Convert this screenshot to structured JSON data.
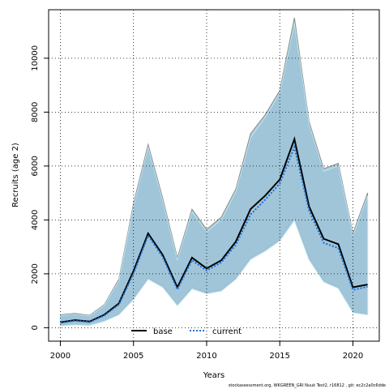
{
  "chart_data": {
    "type": "area",
    "xlabel": "Years",
    "ylabel": "Recruits (age 2)",
    "xlim": [
      1999.2,
      2021.8
    ],
    "ylim": [
      -500,
      11800
    ],
    "x_ticks": [
      "2000",
      "2005",
      "2010",
      "2015",
      "2020"
    ],
    "y_ticks": [
      "0",
      "2000",
      "4000",
      "6000",
      "8000",
      "10000"
    ],
    "grid": true,
    "legend_placement": "bottom",
    "colors": {
      "band_fill": "#9dc3d8",
      "band_outline_base": "#888888",
      "band_outline_current": "#bce3ef",
      "base_line": "#000000",
      "current_line": "#1a6fd6"
    },
    "x": [
      2000,
      2001,
      2002,
      2003,
      2004,
      2005,
      2006,
      2007,
      2008,
      2009,
      2010,
      2011,
      2012,
      2013,
      2014,
      2015,
      2016,
      2017,
      2018,
      2019,
      2020,
      2021
    ],
    "series": [
      {
        "name": "base",
        "style": "solid",
        "values": [
          200,
          280,
          230,
          480,
          900,
          2100,
          3500,
          2700,
          1500,
          2600,
          2200,
          2500,
          3200,
          4400,
          4900,
          5500,
          7000,
          4500,
          3300,
          3100,
          1500,
          1600
        ],
        "lower": [
          80,
          120,
          100,
          250,
          500,
          1100,
          1850,
          1550,
          860,
          1500,
          1300,
          1400,
          1850,
          2600,
          2900,
          3300,
          4100,
          2600,
          1750,
          1500,
          580,
          500
        ],
        "upper": [
          480,
          530,
          460,
          850,
          1800,
          4600,
          6800,
          4800,
          2600,
          4400,
          3650,
          4100,
          5150,
          7200,
          7900,
          8800,
          11500,
          7650,
          5900,
          6100,
          3500,
          5000
        ]
      },
      {
        "name": "current",
        "style": "dotted",
        "values": [
          180,
          260,
          210,
          450,
          860,
          2000,
          3420,
          2620,
          1420,
          2500,
          2120,
          2420,
          3080,
          4200,
          4750,
          5350,
          6700,
          4350,
          3150,
          2950,
          1400,
          1520
        ],
        "lower": [
          70,
          110,
          90,
          240,
          480,
          1050,
          1800,
          1500,
          820,
          1440,
          1260,
          1360,
          1800,
          2530,
          2840,
          3220,
          3980,
          2520,
          1700,
          1460,
          560,
          480
        ],
        "upper": [
          460,
          500,
          440,
          820,
          1740,
          4500,
          6700,
          4700,
          2520,
          4300,
          3560,
          4000,
          5050,
          7050,
          7800,
          8700,
          11300,
          7550,
          5800,
          6000,
          3420,
          4900
        ]
      }
    ]
  },
  "footer": "stockassessment.org, WKGREEN_GRI Nuuk Test2, r16812 , git: ec2c2a0c6dde"
}
